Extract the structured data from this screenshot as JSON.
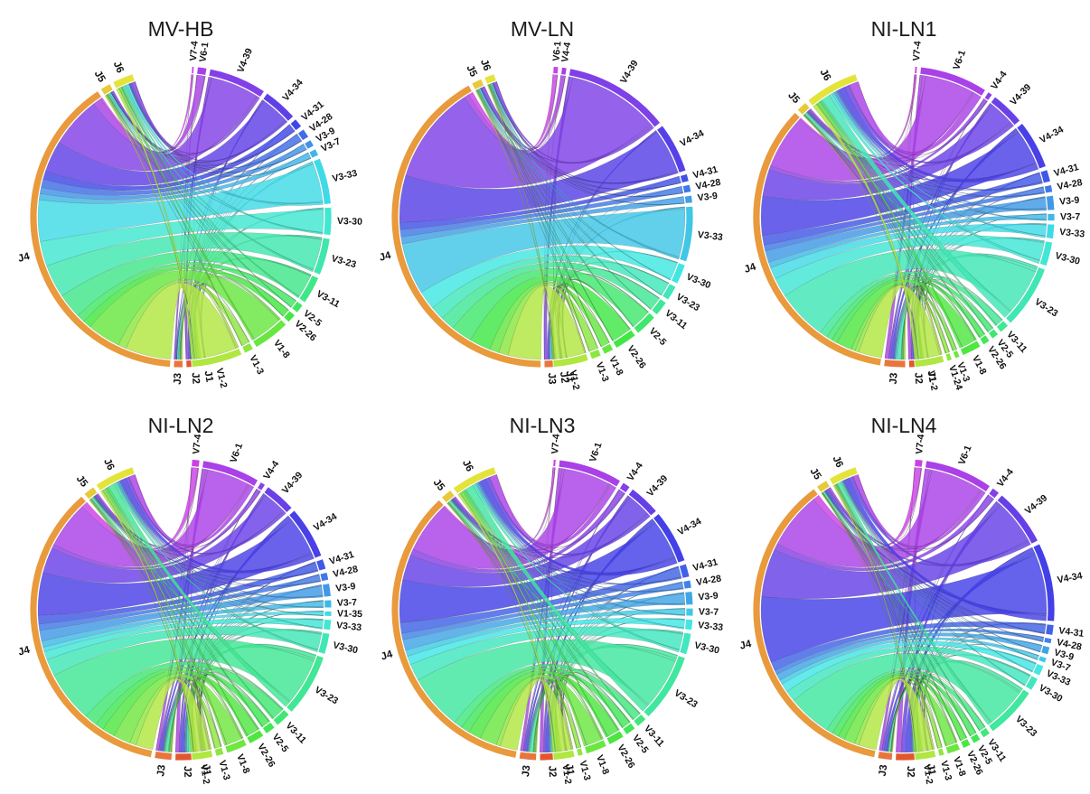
{
  "panels": [
    {
      "title": "MV-HB",
      "j_segments": [
        {
          "label": "J1",
          "weight": 0.7
        },
        {
          "label": "J2",
          "weight": 6
        },
        {
          "label": "J3",
          "weight": 3.5
        },
        {
          "label": "J4",
          "weight": 140
        },
        {
          "label": "J5",
          "weight": 4
        },
        {
          "label": "J6",
          "weight": 8
        }
      ],
      "v_segments": [
        {
          "label": "V7-4",
          "weight": 1
        },
        {
          "label": "V6-1",
          "weight": 4
        },
        {
          "label": "V4-39",
          "weight": 25
        },
        {
          "label": "V4-34",
          "weight": 15
        },
        {
          "label": "V4-31",
          "weight": 4
        },
        {
          "label": "V4-28",
          "weight": 4
        },
        {
          "label": "V3-9",
          "weight": 3
        },
        {
          "label": "V3-7",
          "weight": 3
        },
        {
          "label": "V3-33",
          "weight": 20
        },
        {
          "label": "V3-30",
          "weight": 12
        },
        {
          "label": "V3-23",
          "weight": 16
        },
        {
          "label": "V3-11",
          "weight": 12
        },
        {
          "label": "V2-5",
          "weight": 4
        },
        {
          "label": "V2-26",
          "weight": 4
        },
        {
          "label": "V1-8",
          "weight": 16
        },
        {
          "label": "V1-3",
          "weight": 4
        },
        {
          "label": "V1-2",
          "weight": 22
        }
      ]
    },
    {
      "title": "MV-LN",
      "j_segments": [
        {
          "label": "J1",
          "weight": 0.7
        },
        {
          "label": "J2",
          "weight": 1.2
        },
        {
          "label": "J3",
          "weight": 5
        },
        {
          "label": "J4",
          "weight": 150
        },
        {
          "label": "J5",
          "weight": 4
        },
        {
          "label": "J6",
          "weight": 4
        }
      ],
      "v_segments": [
        {
          "label": "V6-1",
          "weight": 2
        },
        {
          "label": "V4-4",
          "weight": 2
        },
        {
          "label": "V4-39",
          "weight": 42
        },
        {
          "label": "V4-34",
          "weight": 20
        },
        {
          "label": "V4-31",
          "weight": 3
        },
        {
          "label": "V4-28",
          "weight": 3
        },
        {
          "label": "V3-9",
          "weight": 3
        },
        {
          "label": "V3-33",
          "weight": 22
        },
        {
          "label": "V3-30",
          "weight": 8
        },
        {
          "label": "V3-23",
          "weight": 6
        },
        {
          "label": "V3-11",
          "weight": 6
        },
        {
          "label": "V2-5",
          "weight": 9
        },
        {
          "label": "V2-26",
          "weight": 9
        },
        {
          "label": "V1-8",
          "weight": 4
        },
        {
          "label": "V1-3",
          "weight": 4
        },
        {
          "label": "V1-2",
          "weight": 14
        }
      ]
    },
    {
      "title": "NI-LN1",
      "j_segments": [
        {
          "label": "J1",
          "weight": 0.7
        },
        {
          "label": "J2",
          "weight": 6
        },
        {
          "label": "J3",
          "weight": 8
        },
        {
          "label": "J4",
          "weight": 120
        },
        {
          "label": "J5",
          "weight": 4
        },
        {
          "label": "J6",
          "weight": 20
        }
      ],
      "v_segments": [
        {
          "label": "V7-4",
          "weight": 1
        },
        {
          "label": "V6-1",
          "weight": 28
        },
        {
          "label": "V4-4",
          "weight": 2
        },
        {
          "label": "V4-39",
          "weight": 14
        },
        {
          "label": "V4-34",
          "weight": 20
        },
        {
          "label": "V4-31",
          "weight": 5
        },
        {
          "label": "V4-28",
          "weight": 3
        },
        {
          "label": "V3-9",
          "weight": 6
        },
        {
          "label": "V3-7",
          "weight": 3
        },
        {
          "label": "V3-33",
          "weight": 6
        },
        {
          "label": "V3-30",
          "weight": 10
        },
        {
          "label": "V3-23",
          "weight": 26
        },
        {
          "label": "V3-11",
          "weight": 4
        },
        {
          "label": "V2-5",
          "weight": 3
        },
        {
          "label": "V2-26",
          "weight": 3
        },
        {
          "label": "V1-8",
          "weight": 8
        },
        {
          "label": "V1-3",
          "weight": 2
        },
        {
          "label": "V1-24",
          "weight": 2
        },
        {
          "label": "V1-2",
          "weight": 12
        }
      ]
    },
    {
      "title": "NI-LN2",
      "j_segments": [
        {
          "label": "J1",
          "weight": 2
        },
        {
          "label": "J2",
          "weight": 8
        },
        {
          "label": "J3",
          "weight": 6
        },
        {
          "label": "J4",
          "weight": 115
        },
        {
          "label": "J5",
          "weight": 4
        },
        {
          "label": "J6",
          "weight": 14
        }
      ],
      "v_segments": [
        {
          "label": "V7-4",
          "weight": 3
        },
        {
          "label": "V6-1",
          "weight": 22
        },
        {
          "label": "V4-4",
          "weight": 2
        },
        {
          "label": "V4-39",
          "weight": 12
        },
        {
          "label": "V4-34",
          "weight": 20
        },
        {
          "label": "V4-31",
          "weight": 4
        },
        {
          "label": "V4-28",
          "weight": 3
        },
        {
          "label": "V3-9",
          "weight": 5
        },
        {
          "label": "V3-7",
          "weight": 3
        },
        {
          "label": "V1-35",
          "weight": 2
        },
        {
          "label": "V3-33",
          "weight": 4
        },
        {
          "label": "V3-30",
          "weight": 8
        },
        {
          "label": "V3-23",
          "weight": 24
        },
        {
          "label": "V3-11",
          "weight": 6
        },
        {
          "label": "V2-5",
          "weight": 4
        },
        {
          "label": "V2-26",
          "weight": 6
        },
        {
          "label": "V1-8",
          "weight": 8
        },
        {
          "label": "V1-3",
          "weight": 3
        },
        {
          "label": "V1-2",
          "weight": 8
        }
      ]
    },
    {
      "title": "NI-LN3",
      "j_segments": [
        {
          "label": "J1",
          "weight": 1
        },
        {
          "label": "J2",
          "weight": 8
        },
        {
          "label": "J3",
          "weight": 6
        },
        {
          "label": "J4",
          "weight": 115
        },
        {
          "label": "J5",
          "weight": 4
        },
        {
          "label": "J6",
          "weight": 16
        }
      ],
      "v_segments": [
        {
          "label": "V7-4",
          "weight": 1
        },
        {
          "label": "V6-1",
          "weight": 24
        },
        {
          "label": "V4-4",
          "weight": 3
        },
        {
          "label": "V4-39",
          "weight": 12
        },
        {
          "label": "V4-34",
          "weight": 20
        },
        {
          "label": "V4-31",
          "weight": 5
        },
        {
          "label": "V4-28",
          "weight": 3
        },
        {
          "label": "V3-9",
          "weight": 5
        },
        {
          "label": "V3-7",
          "weight": 3
        },
        {
          "label": "V3-33",
          "weight": 4
        },
        {
          "label": "V3-30",
          "weight": 8
        },
        {
          "label": "V3-23",
          "weight": 26
        },
        {
          "label": "V3-11",
          "weight": 4
        },
        {
          "label": "V2-5",
          "weight": 4
        },
        {
          "label": "V2-26",
          "weight": 6
        },
        {
          "label": "V1-8",
          "weight": 8
        },
        {
          "label": "V1-3",
          "weight": 2
        },
        {
          "label": "V1-2",
          "weight": 8
        }
      ]
    },
    {
      "title": "NI-LN4",
      "j_segments": [
        {
          "label": "J1",
          "weight": 1
        },
        {
          "label": "J2",
          "weight": 10
        },
        {
          "label": "J3",
          "weight": 5
        },
        {
          "label": "J4",
          "weight": 120
        },
        {
          "label": "J5",
          "weight": 4
        },
        {
          "label": "J6",
          "weight": 10
        }
      ],
      "v_segments": [
        {
          "label": "V7-4",
          "weight": 3
        },
        {
          "label": "V6-1",
          "weight": 26
        },
        {
          "label": "V4-4",
          "weight": 3
        },
        {
          "label": "V4-39",
          "weight": 22
        },
        {
          "label": "V4-34",
          "weight": 30
        },
        {
          "label": "V4-31",
          "weight": 4
        },
        {
          "label": "V4-28",
          "weight": 2
        },
        {
          "label": "V3-9",
          "weight": 3
        },
        {
          "label": "V3-7",
          "weight": 2
        },
        {
          "label": "V3-33",
          "weight": 4
        },
        {
          "label": "V3-30",
          "weight": 5
        },
        {
          "label": "V3-23",
          "weight": 20
        },
        {
          "label": "V3-11",
          "weight": 3
        },
        {
          "label": "V2-5",
          "weight": 3
        },
        {
          "label": "V2-26",
          "weight": 3
        },
        {
          "label": "V1-8",
          "weight": 5
        },
        {
          "label": "V1-3",
          "weight": 2
        },
        {
          "label": "V1-2",
          "weight": 8
        }
      ]
    }
  ],
  "palette": {
    "j": [
      "#d9482b",
      "#e2562f",
      "#e8763c",
      "#e99a3c",
      "#e8c93a",
      "#e3e33a"
    ],
    "v_start": "#c44be6",
    "v_end": "#a7e23a",
    "ribbon_outline": "#2a2a2a"
  }
}
